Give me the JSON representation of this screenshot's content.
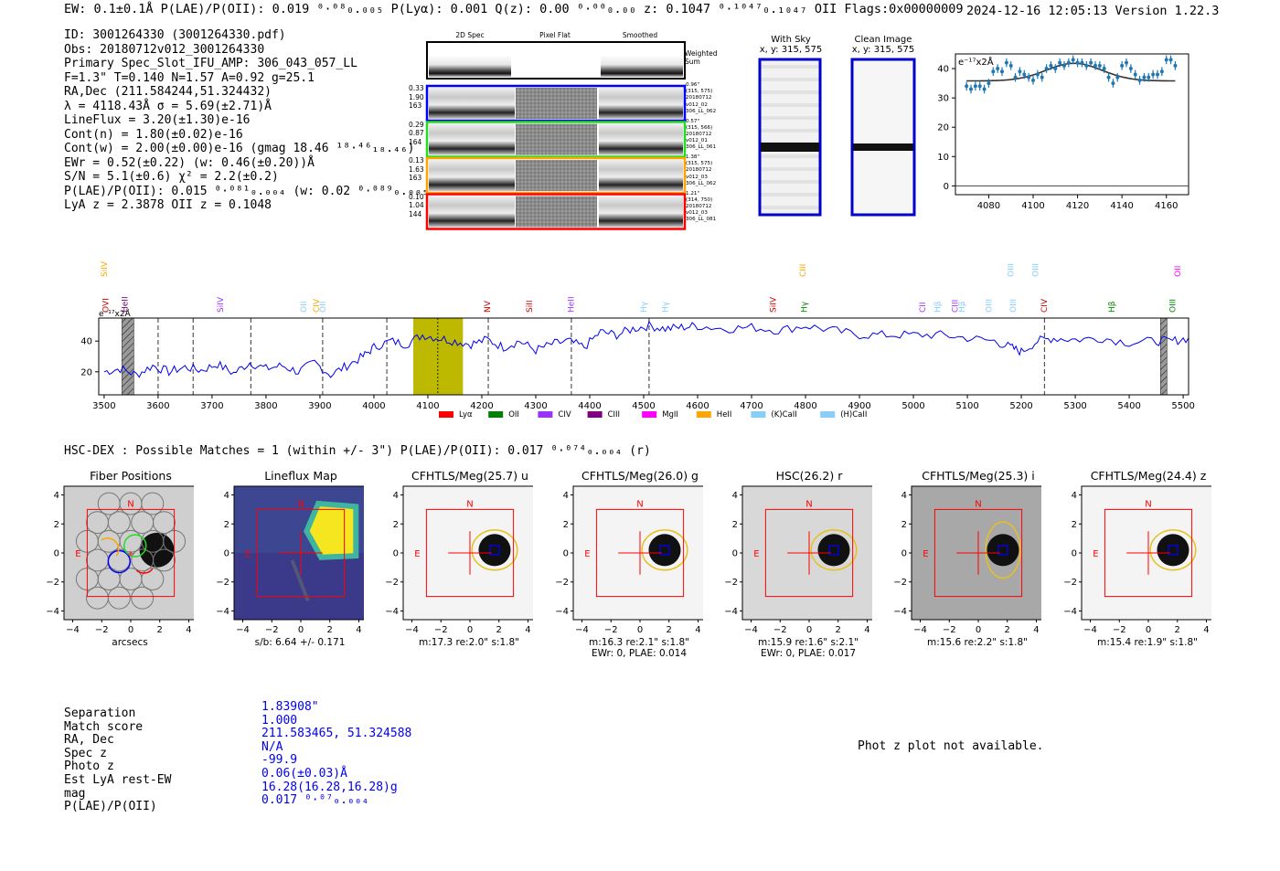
{
  "header": {
    "left": "EW: 0.1±0.1Å  P(LAE)/P(OII): 0.019 ⁰·⁰⁸₀.₀₀₅  P(Lyα): 0.001  Q(z): 0.00 ⁰·⁰⁰₀.₀₀  z: 0.1047 ⁰·¹⁰⁴⁷₀.₁₀₄₇ OII   Flags:0x00000009",
    "right": "2024-12-16 12:05:13  Version 1.22.3"
  },
  "info_lines": [
    "ID: 3001264330 (3001264330.pdf)",
    "Obs: 20180712v012_3001264330",
    "Primary Spec_Slot_IFU_AMP: 306_043_057_LL",
    "F=1.3\"  T=0.140  N=1.57  A=0.92  g=25.1",
    "RA,Dec (211.584244,51.324432)",
    "λ = 4118.43Å  σ = 5.69(±2.71)Å",
    "LineFlux = 3.20(±1.30)e-16",
    "Cont(n) = 1.80(±0.02)e-16",
    "Cont(w) = 2.00(±0.00)e-16 (gmag 18.46 ¹⁸·⁴⁶₁₈.₄₆)",
    "EWr = 0.52(±0.22) (w: 0.46(±0.20))Å",
    "S/N = 5.1(±0.6)  χ² = 2.2(±0.2)",
    "P(LAE)/P(OII): 0.015 ⁰·⁰⁸¹₀.₀₀₄ (w: 0.02 ⁰·⁰⁸⁹₀.₀₀₅)",
    "LyA z = 2.3878  OII z = 0.1048"
  ],
  "spec2d": {
    "col_titles": [
      "2D Spec",
      "Pixel Flat",
      "Smoothed"
    ],
    "weighted_sum_label": "Weighted Sum",
    "rows": [
      {
        "left": [
          "0.33",
          "1.90",
          "163"
        ],
        "right": [
          "0.96\"",
          "(315, 575)",
          "20180712",
          "v012_02",
          "306_LL_062"
        ],
        "color": "#0000ff"
      },
      {
        "left": [
          "0.29",
          "0.87",
          "164"
        ],
        "right": [
          "0.57\"",
          "(315, 566)",
          "20180712",
          "v012_01",
          "306_LL_061"
        ],
        "color": "#22dd22"
      },
      {
        "left": [
          "0.13",
          "1.63",
          "163"
        ],
        "right": [
          "1.38\"",
          "(315, 575)",
          "20180712",
          "v012_03",
          "306_LL_062"
        ],
        "color": "#ffa500"
      },
      {
        "left": [
          "0.10",
          "1.04",
          "144"
        ],
        "right": [
          "1.21\"",
          "(314, 750)",
          "20180712",
          "v012_03",
          "306_LL_081"
        ],
        "color": "#ff0000"
      }
    ]
  },
  "sky_panels": [
    {
      "title": "With Sky",
      "subtitle": "x, y: 315, 575"
    },
    {
      "title": "Clean Image",
      "subtitle": "x, y: 315, 575"
    }
  ],
  "zoom_chart": {
    "type": "scatter",
    "unit_label": "e⁻¹⁷x2Å",
    "xlim": [
      4065,
      4170
    ],
    "ylim": [
      -3,
      45
    ],
    "xticks": [
      4080,
      4100,
      4120,
      4140,
      4160
    ],
    "yticks": [
      0,
      10,
      20,
      30,
      40
    ],
    "x": [
      4070,
      4072,
      4074,
      4076,
      4078,
      4080,
      4082,
      4084,
      4086,
      4088,
      4090,
      4092,
      4094,
      4096,
      4098,
      4100,
      4102,
      4104,
      4106,
      4108,
      4110,
      4112,
      4114,
      4116,
      4118,
      4120,
      4122,
      4124,
      4126,
      4128,
      4130,
      4132,
      4134,
      4136,
      4138,
      4140,
      4142,
      4144,
      4146,
      4148,
      4150,
      4152,
      4154,
      4156,
      4158,
      4160,
      4162,
      4164
    ],
    "y": [
      34,
      33,
      34,
      34,
      33,
      35,
      39,
      40,
      39,
      42,
      41,
      37,
      39,
      38,
      37,
      36,
      38,
      37,
      40,
      41,
      40,
      42,
      41,
      42,
      43,
      42,
      42,
      41,
      42,
      41,
      41,
      40,
      37,
      35,
      37,
      41,
      42,
      40,
      38,
      36,
      37,
      37,
      38,
      38,
      39,
      43,
      43,
      41
    ],
    "err": [
      1.5,
      1.5,
      1.5,
      1.5,
      1.5,
      1.5,
      1.5,
      1.5,
      1.5,
      1.5,
      1.5,
      1.5,
      1.5,
      1.5,
      1.5,
      1.5,
      1.5,
      1.5,
      1.5,
      1.5,
      1.5,
      1.5,
      1.5,
      1.5,
      1.5,
      1.5,
      1.5,
      1.5,
      1.5,
      1.5,
      1.5,
      1.5,
      1.5,
      1.5,
      1.5,
      1.5,
      1.5,
      1.5,
      1.5,
      1.5,
      1.5,
      1.5,
      1.5,
      1.5,
      1.5,
      1.5,
      1.5,
      1.5
    ],
    "model_base": 35.8,
    "model_peak": 6.0,
    "model_center": 4118.4,
    "model_sigma": 5.7
  },
  "chart_data": {
    "type": "line",
    "unit_label": "e⁻¹⁷x2Å",
    "xlim": [
      3490,
      5510
    ],
    "ylim": [
      5,
      55
    ],
    "xticks": [
      3500,
      3600,
      3700,
      3800,
      3900,
      4000,
      4100,
      4200,
      4300,
      4400,
      4500,
      4600,
      4700,
      4800,
      4900,
      5000,
      5100,
      5200,
      5300,
      5400,
      5500
    ],
    "yticks": [
      20,
      40
    ],
    "x": [
      3500,
      3530,
      3560,
      3590,
      3620,
      3650,
      3680,
      3710,
      3740,
      3770,
      3800,
      3830,
      3860,
      3890,
      3920,
      3950,
      3980,
      4000,
      4030,
      4060,
      4090,
      4120,
      4150,
      4180,
      4210,
      4240,
      4270,
      4300,
      4330,
      4360,
      4390,
      4420,
      4450,
      4480,
      4510,
      4540,
      4570,
      4600,
      4650,
      4700,
      4750,
      4800,
      4850,
      4900,
      4950,
      5000,
      5050,
      5100,
      5150,
      5180,
      5200,
      5230,
      5260,
      5300,
      5350,
      5400,
      5450,
      5480,
      5510
    ],
    "y": [
      20,
      22,
      18,
      24,
      20,
      23,
      21,
      25,
      19,
      26,
      22,
      24,
      20,
      26,
      18,
      24,
      30,
      36,
      40,
      38,
      44,
      42,
      40,
      38,
      41,
      36,
      40,
      34,
      38,
      40,
      36,
      46,
      44,
      48,
      50,
      48,
      49,
      50,
      48,
      49,
      47,
      50,
      47,
      44,
      44,
      44,
      44,
      42,
      40,
      36,
      33,
      40,
      42,
      41,
      42,
      39,
      40,
      40,
      42
    ],
    "highlight": [
      4073,
      4165
    ],
    "center_line": 4118.4,
    "dashed_lines": [
      3600,
      3665,
      3772,
      3905,
      4024,
      4212,
      4366,
      4510,
      5243
    ],
    "hatched": [
      [
        3533,
        3555
      ],
      [
        5458,
        5470
      ]
    ],
    "line_labels": [
      {
        "text": "OVI",
        "x": 3503,
        "row": "low",
        "color": "#cc0000"
      },
      {
        "text": "HeII",
        "x": 3538,
        "row": "low",
        "color": "#6a0070"
      },
      {
        "text": "SiIV",
        "x": 3500,
        "row": "high",
        "color": "#ffa500"
      },
      {
        "text": "SiIV",
        "x": 3715,
        "row": "low",
        "color": "#9933ff"
      },
      {
        "text": "OII",
        "x": 3870,
        "row": "low",
        "color": "#87cefa"
      },
      {
        "text": "CIV",
        "x": 3893,
        "row": "low",
        "color": "#ffa500"
      },
      {
        "text": "OII",
        "x": 3905,
        "row": "low",
        "color": "#87cefa"
      },
      {
        "text": "NV",
        "x": 4210,
        "row": "low",
        "color": "#cc0000"
      },
      {
        "text": "SiII",
        "x": 4288,
        "row": "low",
        "color": "#cc0000"
      },
      {
        "text": "HeII",
        "x": 4365,
        "row": "low",
        "color": "#9933ff"
      },
      {
        "text": "Hγ",
        "x": 4500,
        "row": "low",
        "color": "#87cefa"
      },
      {
        "text": "Hγ",
        "x": 4540,
        "row": "low",
        "color": "#87cefa"
      },
      {
        "text": "SiIV",
        "x": 4740,
        "row": "low",
        "color": "#cc0000"
      },
      {
        "text": "Hγ",
        "x": 4797,
        "row": "low",
        "color": "#008800"
      },
      {
        "text": "CIII",
        "x": 4795,
        "row": "high",
        "color": "#ffa500"
      },
      {
        "text": "CII",
        "x": 5017,
        "row": "low",
        "color": "#9933ff"
      },
      {
        "text": "Hβ",
        "x": 5045,
        "row": "low",
        "color": "#87cefa"
      },
      {
        "text": "CIII",
        "x": 5077,
        "row": "low",
        "color": "#9933ff"
      },
      {
        "text": "Hβ",
        "x": 5090,
        "row": "low",
        "color": "#87cefa"
      },
      {
        "text": "OIII",
        "x": 5140,
        "row": "low",
        "color": "#87cefa"
      },
      {
        "text": "OIII",
        "x": 5185,
        "row": "low",
        "color": "#87cefa"
      },
      {
        "text": "OIII",
        "x": 5180,
        "row": "high",
        "color": "#87cefa"
      },
      {
        "text": "OIII",
        "x": 5226,
        "row": "high",
        "color": "#87cefa"
      },
      {
        "text": "CIV",
        "x": 5242,
        "row": "low",
        "color": "#cc0000"
      },
      {
        "text": "Hβ",
        "x": 5368,
        "row": "low",
        "color": "#008800"
      },
      {
        "text": "OII",
        "x": 5490,
        "row": "high",
        "color": "#ff00ff"
      },
      {
        "text": "OIII",
        "x": 5480,
        "row": "low",
        "color": "#008800"
      }
    ],
    "legend": [
      {
        "label": "Lyα",
        "color": "#ff0000"
      },
      {
        "label": "OII",
        "color": "#008000"
      },
      {
        "label": "CIV",
        "color": "#9933ff"
      },
      {
        "label": "CIII",
        "color": "#800080"
      },
      {
        "label": "MgII",
        "color": "#ff00ff"
      },
      {
        "label": "HeII",
        "color": "#ffa500"
      },
      {
        "label": "(K)CaII",
        "color": "#87cefa"
      },
      {
        "label": "(H)CaII",
        "color": "#87cefa"
      }
    ]
  },
  "hsc_header": "HSC-DEX : Possible Matches = 1 (within +/- 3\")  P(LAE)/P(OII): 0.017 ⁰·⁰⁷⁴₀.₀₀₄ (r)",
  "cutouts": [
    {
      "title": "Fiber Positions",
      "foot": [
        "arcsecs"
      ],
      "kind": "fiber"
    },
    {
      "title": "Lineflux Map",
      "foot": [
        "s/b: 6.64 +/- 0.171"
      ],
      "kind": "lineflux"
    },
    {
      "title": "CFHTLS/Meg(25.7) u",
      "foot": [
        "m:17.3  re:2.0\"  s:1.8\""
      ],
      "kind": "img",
      "bg": "#f4f4f4"
    },
    {
      "title": "CFHTLS/Meg(26.0) g",
      "foot": [
        "m:16.3  re:2.1\"  s:1.8\"",
        "EWr: 0, PLAE: 0.014"
      ],
      "kind": "img",
      "bg": "#f4f4f4"
    },
    {
      "title": "HSC(26.2) r",
      "foot": [
        "m:15.9  re:1.6\"  s:2.1\"",
        "EWr: 0, PLAE: 0.017"
      ],
      "kind": "img",
      "bg": "#d8d8d8"
    },
    {
      "title": "CFHTLS/Meg(25.3) i",
      "foot": [
        "m:15.6  re:2.2\"  s:1.8\""
      ],
      "kind": "img",
      "bg": "#a8a8a8"
    },
    {
      "title": "CFHTLS/Meg(24.4) z",
      "foot": [
        "m:15.4  re:1.9\"  s:1.8\""
      ],
      "kind": "img",
      "bg": "#f4f4f4"
    }
  ],
  "cutout_axes": {
    "ticks": [
      "4",
      "2",
      "0",
      "−2",
      "−4"
    ],
    "xticks": [
      "−4",
      "−2",
      "0",
      "2",
      "4"
    ],
    "north": "N",
    "east": "E"
  },
  "match_table": {
    "labels": [
      "Separation",
      "Match score",
      "RA, Dec",
      "Spec z",
      "Photo z",
      "Est LyA rest-EW",
      "mag",
      "P(LAE)/P(OII)"
    ],
    "values": [
      "1.83908\"",
      "1.000",
      "211.583465, 51.324588",
      "N/A",
      "-99.9",
      "0.06(±0.03)Å",
      "16.28(16.28,16.28)g",
      "0.017 ⁰·⁰⁷₀.₀₀₄"
    ]
  },
  "phot_z_message": "Phot z plot not available."
}
